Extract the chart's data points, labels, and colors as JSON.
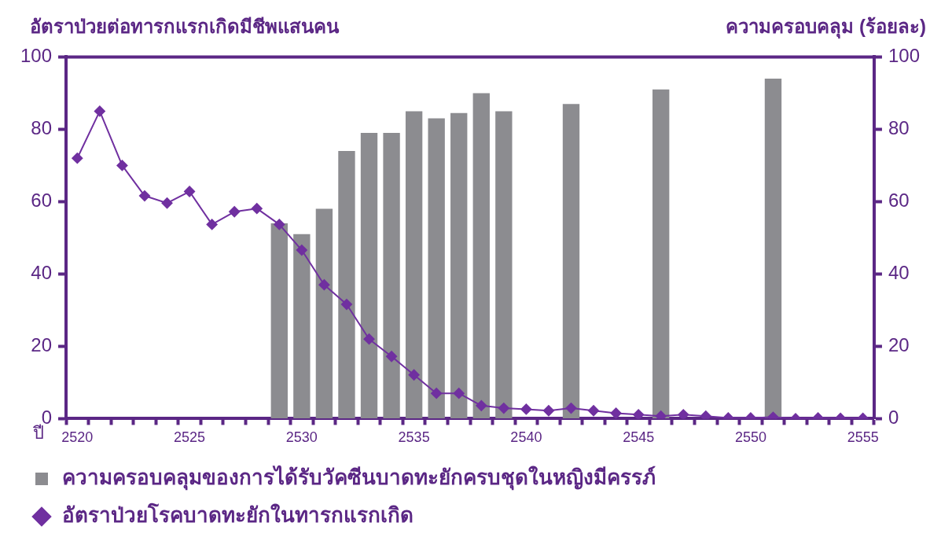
{
  "chart_data": {
    "type": "bar",
    "xlabel": "ปี",
    "ylabel": "อัตราป่วยต่อทารกแรกเกิดมีชีพแสนคน",
    "y2label": "ความครอบคลุม (ร้อยละ)",
    "categories": [
      "2520",
      null,
      null,
      null,
      null,
      "2525",
      null,
      null,
      null,
      null,
      "2530",
      null,
      null,
      null,
      null,
      "2535",
      null,
      null,
      null,
      null,
      "2540",
      null,
      null,
      null,
      null,
      "2545",
      null,
      null,
      null,
      null,
      "2550",
      null,
      null,
      null,
      null,
      "2555"
    ],
    "series": [
      {
        "name": "ความครอบคลุมของการได้รับวัคซีนบาดทะยักครบชุดในหญิงมีครรภ์",
        "axis": "y2",
        "color": "#8c8c90",
        "values": [
          null,
          null,
          null,
          null,
          null,
          null,
          null,
          null,
          null,
          54,
          51,
          58,
          74,
          79,
          79,
          85,
          83,
          84.5,
          90,
          85,
          null,
          null,
          87,
          null,
          null,
          null,
          91,
          null,
          null,
          null,
          null,
          94,
          null,
          null,
          null,
          null
        ]
      },
      {
        "name": "อัตราป่วยโรคบาดทะยักในทารกแรกเกิด",
        "type": "line",
        "color": "#7030a0",
        "values": [
          72,
          85,
          70,
          61.6,
          59.6,
          62.8,
          53.7,
          57.2,
          58.1,
          53.7,
          46.6,
          37,
          31.6,
          22,
          17.2,
          12.1,
          7,
          7,
          3.6,
          2.9,
          2.6,
          2.2,
          2.9,
          2.2,
          1.5,
          1.1,
          0.7,
          1.1,
          0.7,
          0.2,
          0.2,
          0.4,
          0,
          0.2,
          0.1,
          0.1
        ]
      }
    ],
    "ylim": [
      0,
      100
    ],
    "yticks": [
      0,
      20,
      40,
      60,
      80,
      100
    ],
    "y2lim": [
      0,
      100
    ],
    "y2ticks": [
      0,
      20,
      40,
      60,
      80,
      100
    ],
    "grid": false,
    "legend": "bottom",
    "marker": "diamond",
    "line_style": "solid"
  }
}
